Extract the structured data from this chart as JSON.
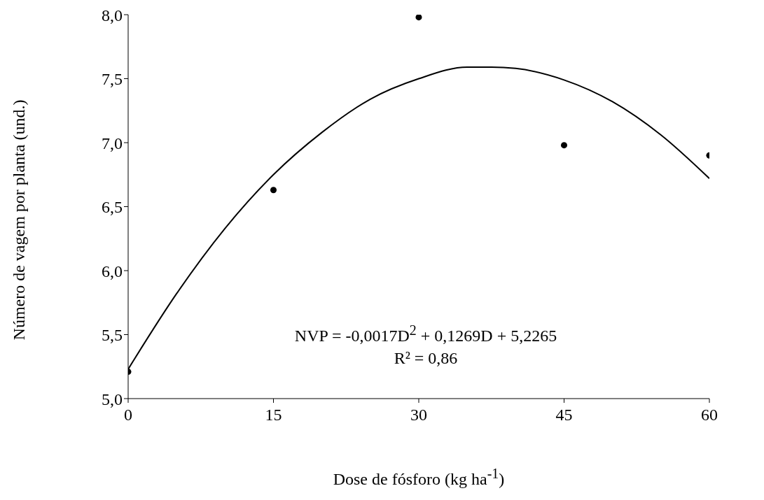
{
  "chart_data": {
    "type": "scatter",
    "xlabel": "Dose de fósforo (kg ha$^{-1}$)",
    "ylabel": "Número de vagem por planta (und.)",
    "annotations": [
      "NVP = -0,0017D$^{2}$ + 0,1269D + 5,2265",
      "R² = 0,86"
    ],
    "series": [
      {
        "type": "scatter",
        "color": "#000000",
        "marker": "circle",
        "x": [
          0,
          15,
          30,
          45,
          60
        ],
        "values": [
          5.21,
          6.63,
          7.98,
          6.98,
          6.9
        ]
      },
      {
        "type": "line",
        "color": "#000000",
        "marker": "none",
        "line_style": "solid",
        "x": [
          0,
          5,
          10,
          15,
          20,
          25,
          30,
          35,
          37.5,
          40,
          45,
          50,
          55,
          60
        ],
        "values": [
          5.23,
          5.82,
          6.33,
          6.75,
          7.08,
          7.34,
          7.5,
          7.59,
          7.59,
          7.58,
          7.49,
          7.32,
          7.06,
          6.72
        ]
      }
    ],
    "xlim": [
      0,
      60
    ],
    "xticks": [
      0,
      15,
      30,
      45,
      60
    ],
    "ylim": [
      5,
      8
    ],
    "yticks": [
      {
        "value": 5,
        "label": "5,0"
      },
      {
        "value": 5.5,
        "label": "5,5"
      },
      {
        "value": 6,
        "label": "6,0"
      },
      {
        "value": 6.5,
        "label": "6,5"
      },
      {
        "value": 7,
        "label": "7,0"
      },
      {
        "value": 7.5,
        "label": "7,5"
      },
      {
        "value": 8,
        "label": "8,0"
      }
    ],
    "grid": false
  }
}
